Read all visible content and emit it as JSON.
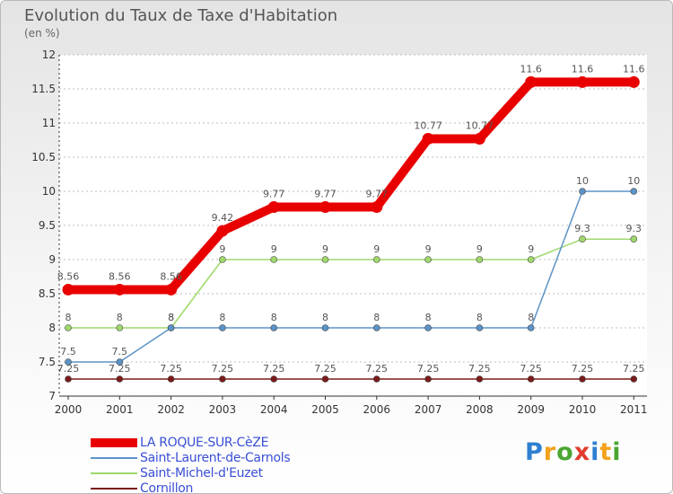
{
  "chart_data": {
    "type": "line",
    "title": "Evolution du Taux de Taxe d'Habitation",
    "subtitle": "(en %)",
    "xlabel": "",
    "ylabel": "",
    "categories": [
      "2000",
      "2001",
      "2002",
      "2003",
      "2004",
      "2005",
      "2006",
      "2007",
      "2008",
      "2009",
      "2010",
      "2011"
    ],
    "ylim": [
      7,
      12
    ],
    "yticks": [
      "7",
      "7.5",
      "8",
      "8.5",
      "9",
      "9.5",
      "10",
      "10.5",
      "11",
      "11.5",
      "12"
    ],
    "grid": "horizontal dashed",
    "legend_position": "bottom-left",
    "series": [
      {
        "name": "Cornillon",
        "color": "#7a1a1a",
        "values": [
          7.25,
          7.25,
          7.25,
          7.25,
          7.25,
          7.25,
          7.25,
          7.25,
          7.25,
          7.25,
          7.25,
          7.25
        ],
        "labels": [
          "7.25",
          "7.25",
          "7.25",
          "7.25",
          "7.25",
          "7.25",
          "7.25",
          "7.25",
          "7.25",
          "7.25",
          "7.25",
          "7.25"
        ]
      },
      {
        "name": "Saint-Michel-d'Euzet",
        "color": "#9fd86b",
        "values": [
          8,
          8,
          8,
          9,
          9,
          9,
          9,
          9,
          9,
          9,
          9.3,
          9.3
        ],
        "labels": [
          "8",
          "8",
          "8",
          "9",
          "9",
          "9",
          "9",
          "9",
          "9",
          "9",
          "9.3",
          "9.3"
        ]
      },
      {
        "name": "Saint-Laurent-de-Carnols",
        "color": "#5b93c7",
        "values": [
          7.5,
          7.5,
          8,
          8,
          8,
          8,
          8,
          8,
          8,
          8,
          10,
          10
        ],
        "labels": [
          "7.5",
          "7.5",
          "8",
          "8",
          "8",
          "8",
          "8",
          "8",
          "8",
          "8",
          "10",
          "10"
        ]
      },
      {
        "name": "LA ROQUE-SUR-CèZE",
        "color": "#e80000",
        "values": [
          8.56,
          8.56,
          8.56,
          9.42,
          9.77,
          9.77,
          9.77,
          10.77,
          10.77,
          11.6,
          11.6,
          11.6
        ],
        "labels": [
          "8.56",
          "8.56",
          "8.56",
          "9.42",
          "9.77",
          "9.77",
          "9.77",
          "10.77",
          "10.77",
          "11.6",
          "11.6",
          "11.6"
        ]
      }
    ]
  },
  "legend": {
    "items": [
      {
        "label": "LA ROQUE-SUR-CèZE",
        "color": "#e80000",
        "weight": "thick"
      },
      {
        "label": "Saint-Laurent-de-Carnols",
        "color": "#5b93c7",
        "weight": "thin"
      },
      {
        "label": "Saint-Michel-d'Euzet",
        "color": "#9fd86b",
        "weight": "thin"
      },
      {
        "label": "Cornillon",
        "color": "#7a1a1a",
        "weight": "thin"
      }
    ]
  },
  "brand": {
    "letters": [
      "P",
      "r",
      "o",
      "x",
      "i",
      "t",
      "i"
    ],
    "colors": [
      "#2f7fd1",
      "#f3a21b",
      "#4aa630",
      "#e23b2e",
      "#2f7fd1",
      "#f3a21b",
      "#4aa630"
    ]
  }
}
